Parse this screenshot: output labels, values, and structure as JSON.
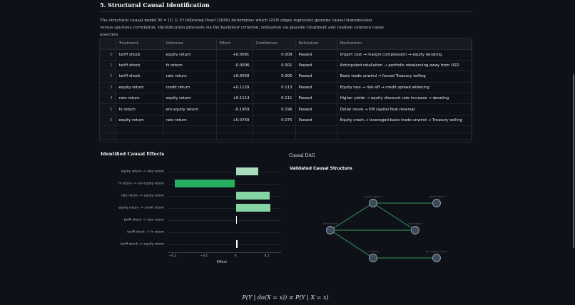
{
  "section": {
    "title": "5. Structural Causal Identification",
    "intro_pre": "The structural causal model ",
    "intro_math": "M = (U, V, F)",
    "intro_post": " following Pearl (2009) determines which GNN edges represent genuine causal transmission versus spurious correlation. Identification proceeds via the backdoor criterion; refutation via placebo treatment and random common cause insertion."
  },
  "table": {
    "headers": [
      "",
      "Treatment",
      "Outcome",
      "Effect",
      "Confidence",
      "Refutation",
      "Mechanism"
    ],
    "rows": [
      {
        "idx": "0",
        "treatment": "tariff shock",
        "outcome": "equity return",
        "effect": "+0.0091",
        "confidence": "0.009",
        "refutation": "Passed",
        "mechanism": "Import cost → margin compression → equity derating"
      },
      {
        "idx": "1",
        "treatment": "tariff shock",
        "outcome": "fx return",
        "effect": "-0.0006",
        "confidence": "0.001",
        "refutation": "Passed",
        "mechanism": "Anticipated retaliation → portfolio rebalancing away from USD"
      },
      {
        "idx": "2",
        "treatment": "tariff shock",
        "outcome": "rate return",
        "effect": "+0.0058",
        "confidence": "0.006",
        "refutation": "Passed",
        "mechanism": "Basis trade unwind → forced Treasury selling"
      },
      {
        "idx": "3",
        "treatment": "equity return",
        "outcome": "credit return",
        "effect": "+0.1129",
        "confidence": "0.113",
        "refutation": "Passed",
        "mechanism": "Equity loss → risk-off → credit spread widening"
      },
      {
        "idx": "4",
        "treatment": "rate return",
        "outcome": "equity return",
        "effect": "+0.1114",
        "confidence": "0.111",
        "refutation": "Passed",
        "mechanism": "Higher yields → equity discount rate increase → derating"
      },
      {
        "idx": "5",
        "treatment": "fx return",
        "outcome": "em equity return",
        "effect": "-0.1959",
        "confidence": "0.196",
        "refutation": "Passed",
        "mechanism": "Dollar move → EM capital flow reversal"
      },
      {
        "idx": "6",
        "treatment": "equity return",
        "outcome": "rate return",
        "effect": "+0.0749",
        "confidence": "0.075",
        "refutation": "Passed",
        "mechanism": "Equity crash → leveraged basis trade unwind → Treasury selling"
      }
    ]
  },
  "effects_panel": {
    "title": "Identified Causal Effects"
  },
  "chart_data": {
    "type": "bar",
    "orientation": "horizontal",
    "title": "Identified Causal Effects",
    "xlabel": "Effect",
    "ylabel": "",
    "categories": [
      "equity return -> rate return",
      "fx return -> em equity return",
      "rate return -> equity return",
      "equity return -> credit return",
      "tariff shock -> rate return",
      "tariff shock -> fx return",
      "tariff shock -> equity return"
    ],
    "values": [
      0.0749,
      -0.1959,
      0.1114,
      0.1129,
      0.0058,
      -0.0006,
      0.0091
    ],
    "colors": [
      "#a8dcbc",
      "#27ae60",
      "#86d4a4",
      "#86d4a4",
      "#ffffff",
      "#9aa0a8",
      "#ffffff"
    ],
    "xticks": [
      "−0.2",
      "−0.1",
      "0",
      "0.1"
    ],
    "xtick_values": [
      -0.2,
      -0.1,
      0,
      0.1
    ],
    "xlim": [
      -0.22,
      0.125
    ],
    "grid": true
  },
  "dag_panel": {
    "label": "Causal DAG",
    "title": "Validated Causal Structure",
    "nodes": [
      {
        "id": "tariff_shock",
        "label": "tariff shock"
      },
      {
        "id": "equity_return",
        "label": "equity return"
      },
      {
        "id": "credit_return",
        "label": "credit return"
      },
      {
        "id": "rate_return",
        "label": "rate return"
      },
      {
        "id": "fx_return",
        "label": "fx return"
      },
      {
        "id": "em_equity_return",
        "label": "em equity return"
      }
    ],
    "edges": [
      [
        "tariff_shock",
        "equity_return"
      ],
      [
        "tariff_shock",
        "rate_return"
      ],
      [
        "tariff_shock",
        "fx_return"
      ],
      [
        "equity_return",
        "credit_return"
      ],
      [
        "equity_return",
        "rate_return"
      ],
      [
        "fx_return",
        "em_equity_return"
      ]
    ],
    "edge_color": "#2e7d4f",
    "node_color": "#3d4a5c"
  },
  "formula": "P(Y | do(X = x)) ≠ P(Y | X = x)"
}
